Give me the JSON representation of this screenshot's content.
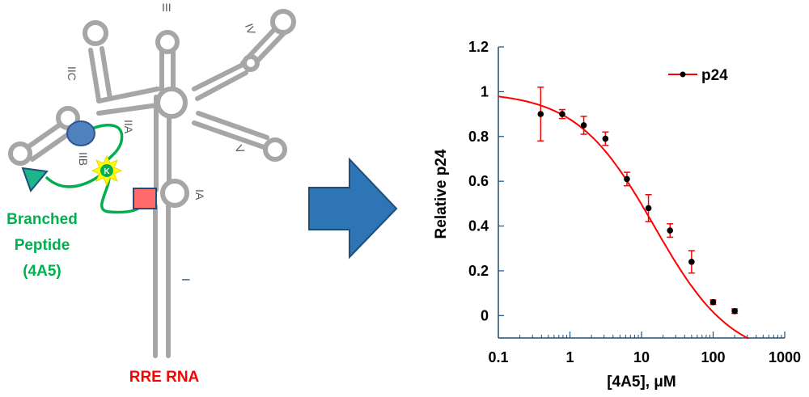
{
  "diagram": {
    "stem_labels": [
      "III",
      "IV",
      "IIC",
      "IIA",
      "IIB",
      "V",
      "IA",
      "I"
    ],
    "lysine_label": "K",
    "peptide_label_lines": [
      "Branched",
      "Peptide",
      "(4A5)"
    ],
    "rna_label": "RRE RNA",
    "colors": {
      "rna": "#a6a6a6",
      "peptide": "#00b050",
      "circle": "#4f81bd",
      "square": "#ff6b6b",
      "triangle": "#1fb58a",
      "star": "#ffff00",
      "arrow": "#2e75b6",
      "rna_label": "#ff0000",
      "stem_I": "#1f4e79"
    }
  },
  "chart_data": {
    "type": "scatter",
    "title": "",
    "xlabel": "[4A5], μM",
    "ylabel": "Relative p24",
    "xscale": "log",
    "xlim": [
      0.1,
      1000
    ],
    "ylim": [
      -0.1,
      1.2
    ],
    "xticks": [
      0.1,
      1,
      10,
      100,
      1000
    ],
    "xtick_labels": [
      "0.1",
      "1",
      "10",
      "100",
      "1000"
    ],
    "yticks": [
      0,
      0.2,
      0.4,
      0.6,
      0.8,
      1,
      1.2
    ],
    "ytick_labels": [
      "0",
      "0.2",
      "0.4",
      "0.6",
      "0.8",
      "1",
      "1.2"
    ],
    "grid": false,
    "legend_position": "top-right",
    "series": [
      {
        "name": "p24",
        "color": "#ff0000",
        "marker_color": "#000000",
        "x": [
          0.39,
          0.78,
          1.56,
          3.13,
          6.25,
          12.5,
          25,
          50,
          100,
          200
        ],
        "y": [
          0.9,
          0.9,
          0.85,
          0.79,
          0.61,
          0.48,
          0.38,
          0.24,
          0.06,
          0.02
        ],
        "yerr": [
          0.12,
          0.02,
          0.04,
          0.03,
          0.03,
          0.06,
          0.03,
          0.05,
          0.01,
          0.01
        ]
      }
    ],
    "fit": {
      "top": 1.0,
      "bottom": -0.2,
      "ec50": 15,
      "hill": 0.8
    }
  }
}
